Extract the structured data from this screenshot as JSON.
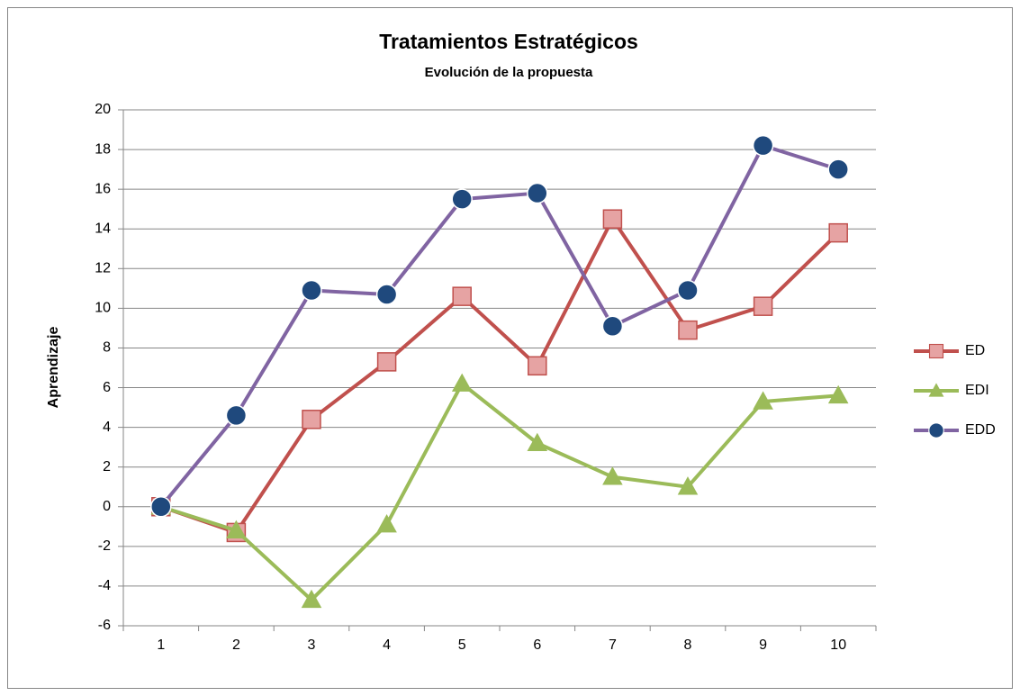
{
  "chart_data": {
    "type": "line",
    "title": "Tratamientos Estratégicos",
    "subtitle": "Evolución de la propuesta",
    "y_label": "Aprendizaje",
    "categories": [
      "1",
      "2",
      "3",
      "4",
      "5",
      "6",
      "7",
      "8",
      "9",
      "10"
    ],
    "series": [
      {
        "name": "ED",
        "color": "#c0504d",
        "marker": "square",
        "marker_color": "#e6a3a3",
        "values": [
          0,
          -1.3,
          4.4,
          7.3,
          10.6,
          7.1,
          14.5,
          8.9,
          10.1,
          13.8
        ]
      },
      {
        "name": "EDI",
        "color": "#9bbb59",
        "marker": "triangle",
        "marker_color": "#9bbb59",
        "values": [
          0,
          -1.2,
          -4.7,
          -0.9,
          6.2,
          3.2,
          1.5,
          1.0,
          5.3,
          5.6
        ]
      },
      {
        "name": "EDD",
        "color": "#8064a2",
        "marker": "circle",
        "marker_color": "#1f497d",
        "values": [
          0,
          4.6,
          10.9,
          10.7,
          15.5,
          15.8,
          9.1,
          10.9,
          18.2,
          17.0
        ]
      }
    ],
    "ylim": [
      -6,
      20
    ],
    "yticks": [
      -6,
      -4,
      -2,
      0,
      2,
      4,
      6,
      8,
      10,
      12,
      14,
      16,
      18,
      20
    ],
    "grid": true,
    "legend": "right"
  }
}
